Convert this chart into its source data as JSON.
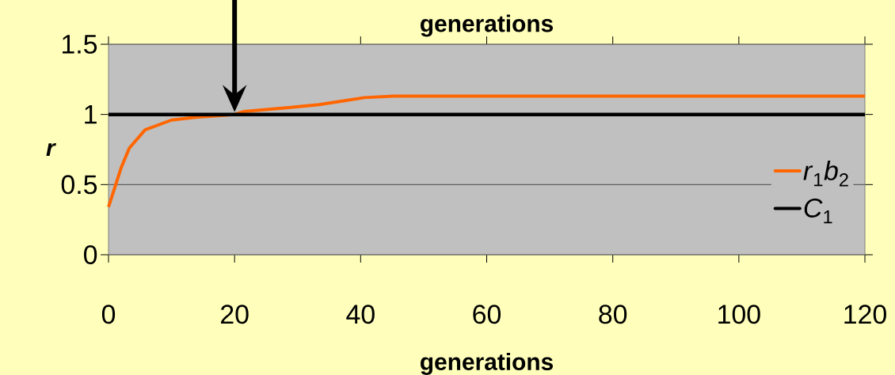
{
  "chart_data": {
    "type": "line",
    "xlabel": "generations",
    "ylabel": "r",
    "annotations": [
      "generations"
    ],
    "xlim": [
      0,
      120
    ],
    "xticks": [
      0,
      20,
      40,
      60,
      80,
      100,
      120
    ],
    "ylim": [
      0,
      1.5
    ],
    "yticks": [
      0,
      0.5,
      1,
      1.5
    ],
    "series": [
      {
        "name": "*r*$_{1}$*b*$_{2}$",
        "color": "#ff6600",
        "x": [
          0,
          2,
          3.3,
          5.8,
          10,
          13.8,
          17,
          20,
          21.4,
          28.9,
          33.4,
          37.7,
          40.6,
          45.2,
          120
        ],
        "values": [
          0.34,
          0.62,
          0.76,
          0.89,
          0.96,
          0.98,
          0.99,
          1.0,
          1.02,
          1.05,
          1.07,
          1.1,
          1.12,
          1.13,
          1.13
        ]
      },
      {
        "name": "*C*$_{1}$",
        "color": "#000000",
        "x": [
          0,
          120
        ],
        "values": [
          1,
          1
        ]
      }
    ],
    "grid": "y",
    "legend": "right",
    "marker": "none",
    "line_style": "solid"
  }
}
